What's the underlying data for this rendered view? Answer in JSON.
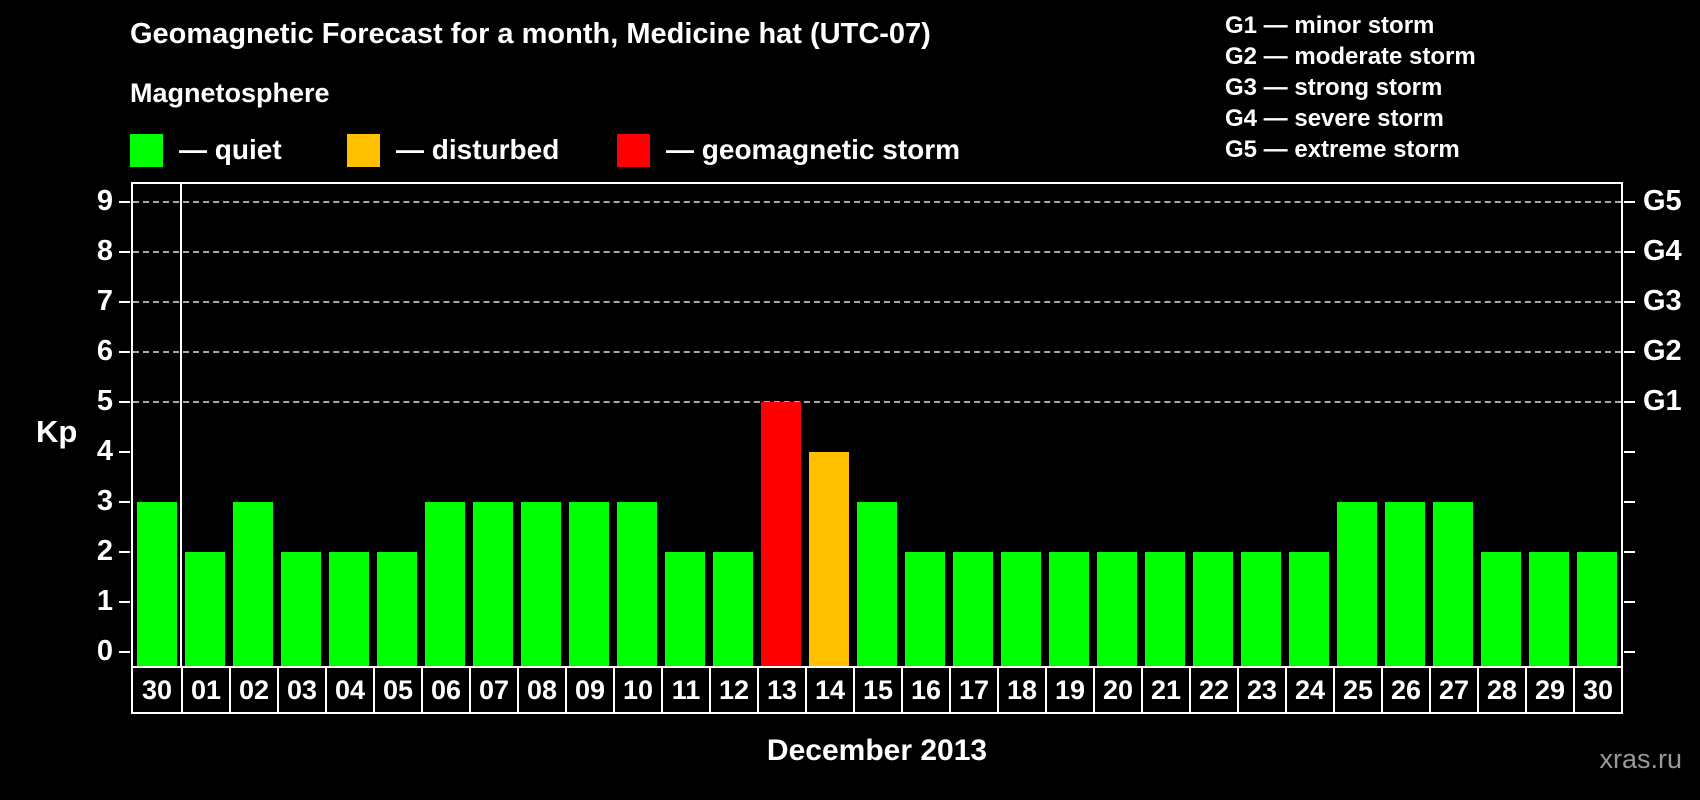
{
  "magnetosphere_legend": {
    "heading": "Magnetosphere",
    "items": [
      {
        "name": "quiet",
        "label": "— quiet",
        "color": "#00ff00"
      },
      {
        "name": "disturbed",
        "label": "— disturbed",
        "color": "#ffc000"
      },
      {
        "name": "storm",
        "label": "— geomagnetic storm",
        "color": "#ff0000"
      }
    ]
  },
  "g_scale_legend": {
    "items": [
      "G1 — minor storm",
      "G2 — moderate storm",
      "G3 — strong storm",
      "G4 — severe storm",
      "G5 — extreme storm"
    ]
  },
  "chart_data": {
    "type": "bar",
    "title": "Geomagnetic Forecast for a month, Medicine hat (UTC-07)",
    "xlabel": "December 2013",
    "ylabel": "Kp",
    "ylim": [
      0,
      9
    ],
    "yticks": [
      0,
      1,
      2,
      3,
      4,
      5,
      6,
      7,
      8,
      9
    ],
    "gridlines_at": [
      5,
      6,
      7,
      8,
      9
    ],
    "grid": "dashed horizontal lines at G-storm levels only",
    "right_axis_labels": [
      {
        "label": "G1",
        "value": 5
      },
      {
        "label": "G2",
        "value": 6
      },
      {
        "label": "G3",
        "value": 7
      },
      {
        "label": "G4",
        "value": 8
      },
      {
        "label": "G5",
        "value": 9
      }
    ],
    "categories": [
      "30",
      "01",
      "02",
      "03",
      "04",
      "05",
      "06",
      "07",
      "08",
      "09",
      "10",
      "11",
      "12",
      "13",
      "14",
      "15",
      "16",
      "17",
      "18",
      "19",
      "20",
      "21",
      "22",
      "23",
      "24",
      "25",
      "26",
      "27",
      "28",
      "29",
      "30"
    ],
    "values": [
      3,
      2,
      3,
      2,
      2,
      2,
      3,
      3,
      3,
      3,
      3,
      2,
      2,
      5,
      4,
      3,
      2,
      2,
      2,
      2,
      2,
      2,
      2,
      2,
      2,
      3,
      3,
      3,
      2,
      2,
      2
    ],
    "bar_status": [
      "quiet",
      "quiet",
      "quiet",
      "quiet",
      "quiet",
      "quiet",
      "quiet",
      "quiet",
      "quiet",
      "quiet",
      "quiet",
      "quiet",
      "quiet",
      "storm",
      "disturbed",
      "quiet",
      "quiet",
      "quiet",
      "quiet",
      "quiet",
      "quiet",
      "quiet",
      "quiet",
      "quiet",
      "quiet",
      "quiet",
      "quiet",
      "quiet",
      "quiet",
      "quiet",
      "quiet"
    ],
    "status_colors": {
      "quiet": "#00ff00",
      "disturbed": "#ffc000",
      "storm": "#ff0000"
    },
    "separator_after_index": 0,
    "legend_position": "top-left"
  },
  "watermark": "xras.ru",
  "colors": {
    "background": "#000000",
    "axis": "#ffffff",
    "gridline": "#a8a8a8",
    "text": "#ffffff",
    "watermark": "#999999"
  }
}
